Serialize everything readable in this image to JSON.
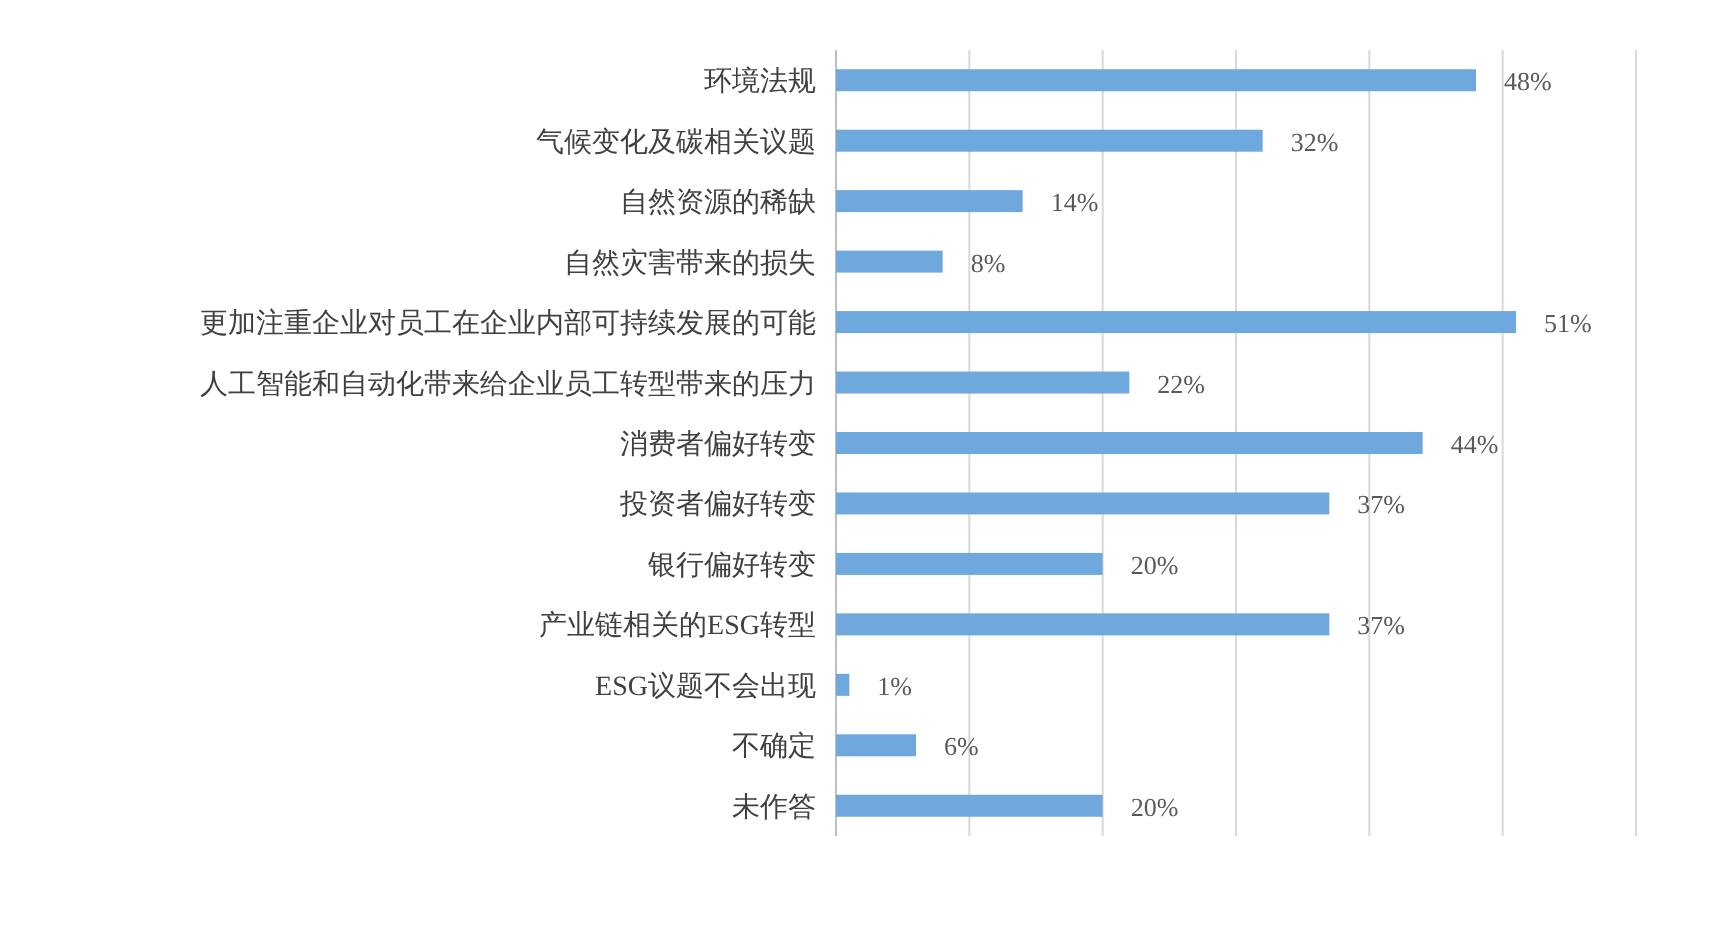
{
  "chart_data": {
    "type": "bar",
    "orientation": "horizontal",
    "categories": [
      "环境法规",
      "气候变化及碳相关议题",
      "自然资源的稀缺",
      "自然灾害带来的损失",
      "更加注重企业对员工在企业内部可持续发展的可能",
      "人工智能和自动化带来给企业员工转型带来的压力",
      "消费者偏好转变",
      "投资者偏好转变",
      "银行偏好转变",
      "产业链相关的ESG转型",
      "ESG议题不会出现",
      "不确定",
      "未作答"
    ],
    "values": [
      48,
      32,
      14,
      8,
      51,
      22,
      44,
      37,
      20,
      37,
      1,
      6,
      20
    ],
    "value_labels": [
      "48%",
      "32%",
      "14%",
      "8%",
      "51%",
      "22%",
      "44%",
      "37%",
      "20%",
      "37%",
      "1%",
      "6%",
      "20%"
    ],
    "color": "#6fa8dc",
    "xlim": [
      0,
      60
    ],
    "xticks": [
      {
        "value": 0,
        "label": null
      },
      {
        "value": 10,
        "label": null
      },
      {
        "value": 20,
        "label": null
      },
      {
        "value": 30,
        "label": null
      },
      {
        "value": 40,
        "label": null
      },
      {
        "value": 50,
        "label": null
      },
      {
        "value": 60,
        "label": null
      }
    ],
    "grid": "x",
    "tick_labels": "y"
  }
}
